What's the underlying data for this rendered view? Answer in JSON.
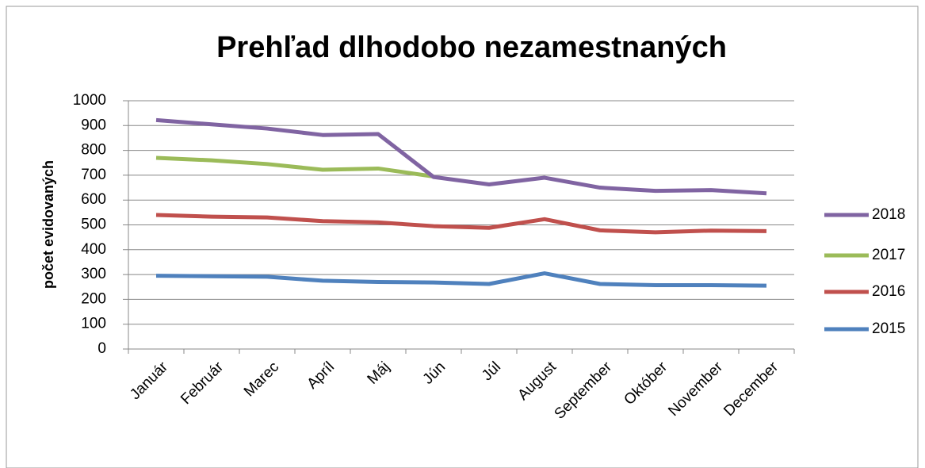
{
  "chart_data": {
    "type": "line",
    "title": "Prehľad dlhodobo nezamestnaných",
    "y_label": "počet evidovaných",
    "categories": [
      "Január",
      "Február",
      "Marec",
      "Apríl",
      "Máj",
      "Jún",
      "Júl",
      "August",
      "September",
      "Október",
      "November",
      "December"
    ],
    "series": [
      {
        "name": "2018",
        "color": "#8064a2",
        "values": [
          922,
          905,
          888,
          862,
          866,
          693,
          663,
          690,
          650,
          637,
          640,
          627
        ]
      },
      {
        "name": "2017",
        "color": "#9bbb59",
        "values": [
          770,
          760,
          745,
          722,
          727,
          695,
          null,
          null,
          null,
          null,
          null,
          null
        ]
      },
      {
        "name": "2016",
        "color": "#c0504d",
        "values": [
          540,
          533,
          530,
          515,
          510,
          495,
          488,
          523,
          478,
          470,
          477,
          475
        ]
      },
      {
        "name": "2015",
        "color": "#4f81bd",
        "values": [
          295,
          293,
          291,
          275,
          270,
          268,
          262,
          305,
          262,
          257,
          257,
          255
        ]
      }
    ],
    "ylim": [
      0,
      1000
    ],
    "yticks": [
      0,
      100,
      200,
      300,
      400,
      500,
      600,
      700,
      800,
      900,
      1000
    ],
    "grid": true,
    "legend": "right"
  }
}
